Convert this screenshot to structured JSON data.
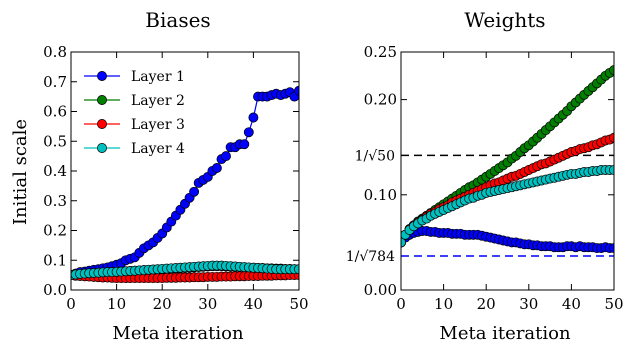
{
  "chart_data": [
    {
      "type": "line",
      "title": "Biases",
      "xlabel": "Meta iteration",
      "ylabel": "Initial scale",
      "xlim": [
        0,
        50
      ],
      "ylim": [
        0,
        0.8
      ],
      "xticks": [
        "0",
        "10",
        "20",
        "30",
        "40",
        "50"
      ],
      "yticks": [
        "0.0",
        "0.1",
        "0.2",
        "0.3",
        "0.4",
        "0.5",
        "0.6",
        "0.7",
        "0.8"
      ],
      "grid": false,
      "legend": "top-left",
      "series": [
        {
          "name": "Layer 1",
          "color": "#0000ff",
          "values": [
            0.05,
            0.055,
            0.06,
            0.062,
            0.065,
            0.068,
            0.07,
            0.073,
            0.076,
            0.08,
            0.085,
            0.09,
            0.1,
            0.105,
            0.11,
            0.125,
            0.14,
            0.15,
            0.16,
            0.175,
            0.19,
            0.21,
            0.23,
            0.25,
            0.27,
            0.29,
            0.31,
            0.33,
            0.36,
            0.37,
            0.38,
            0.4,
            0.41,
            0.44,
            0.45,
            0.48,
            0.48,
            0.49,
            0.49,
            0.53,
            0.58,
            0.65,
            0.65,
            0.65,
            0.655,
            0.66,
            0.655,
            0.66,
            0.665,
            0.65,
            0.67
          ]
        },
        {
          "name": "Layer 2",
          "color": "#007f00",
          "values": [
            0.05,
            0.052,
            0.054,
            0.055,
            0.056,
            0.057,
            0.058,
            0.059,
            0.06,
            0.06,
            0.061,
            0.062,
            0.063,
            0.064,
            0.065,
            0.066,
            0.067,
            0.068,
            0.068,
            0.069,
            0.07,
            0.07,
            0.071,
            0.072,
            0.073,
            0.074,
            0.075,
            0.076,
            0.077,
            0.078,
            0.079,
            0.08,
            0.08,
            0.08,
            0.079,
            0.078,
            0.077,
            0.077,
            0.076,
            0.075,
            0.075,
            0.074,
            0.074,
            0.073,
            0.073,
            0.072,
            0.072,
            0.071,
            0.071,
            0.07,
            0.07
          ]
        },
        {
          "name": "Layer 3",
          "color": "#ff0000",
          "values": [
            0.05,
            0.048,
            0.047,
            0.046,
            0.045,
            0.044,
            0.043,
            0.042,
            0.042,
            0.041,
            0.04,
            0.04,
            0.04,
            0.04,
            0.04,
            0.04,
            0.04,
            0.04,
            0.04,
            0.04,
            0.04,
            0.041,
            0.041,
            0.041,
            0.042,
            0.042,
            0.042,
            0.043,
            0.043,
            0.043,
            0.044,
            0.044,
            0.044,
            0.045,
            0.045,
            0.045,
            0.046,
            0.046,
            0.046,
            0.047,
            0.047,
            0.047,
            0.048,
            0.048,
            0.048,
            0.049,
            0.049,
            0.049,
            0.05,
            0.05,
            0.05
          ]
        },
        {
          "name": "Layer 4",
          "color": "#00bfbf",
          "values": [
            0.05,
            0.052,
            0.054,
            0.055,
            0.056,
            0.057,
            0.058,
            0.059,
            0.06,
            0.06,
            0.061,
            0.062,
            0.063,
            0.064,
            0.065,
            0.066,
            0.067,
            0.068,
            0.069,
            0.07,
            0.071,
            0.072,
            0.073,
            0.074,
            0.075,
            0.076,
            0.077,
            0.078,
            0.079,
            0.08,
            0.081,
            0.082,
            0.082,
            0.082,
            0.081,
            0.08,
            0.079,
            0.078,
            0.077,
            0.076,
            0.075,
            0.074,
            0.073,
            0.072,
            0.071,
            0.07,
            0.07,
            0.07,
            0.07,
            0.07,
            0.07
          ]
        }
      ]
    },
    {
      "type": "line",
      "title": "Weights",
      "xlabel": "Meta iteration",
      "ylabel": "",
      "xlim": [
        0,
        50
      ],
      "ylim": [
        0,
        0.25
      ],
      "xticks": [
        "0",
        "10",
        "20",
        "30",
        "40",
        "50"
      ],
      "yticks": [
        "0.00",
        "0.10",
        "0.20",
        "0.25"
      ],
      "grid": false,
      "reference_lines": [
        {
          "label": "1/√50",
          "value": 0.1414,
          "color": "#000000",
          "style": "dashed"
        },
        {
          "label": "1/√784",
          "value": 0.0357,
          "color": "#0000ff",
          "style": "dashed"
        }
      ],
      "series": [
        {
          "name": "Layer 1",
          "color": "#0000ff",
          "values": [
            0.05,
            0.055,
            0.058,
            0.06,
            0.061,
            0.062,
            0.062,
            0.061,
            0.061,
            0.06,
            0.06,
            0.06,
            0.059,
            0.059,
            0.059,
            0.058,
            0.058,
            0.058,
            0.058,
            0.057,
            0.056,
            0.055,
            0.054,
            0.053,
            0.052,
            0.051,
            0.05,
            0.05,
            0.049,
            0.048,
            0.048,
            0.047,
            0.047,
            0.046,
            0.046,
            0.046,
            0.045,
            0.045,
            0.045,
            0.046,
            0.046,
            0.045,
            0.046,
            0.045,
            0.045,
            0.045,
            0.044,
            0.044,
            0.045,
            0.044,
            0.044
          ]
        },
        {
          "name": "Layer 2",
          "color": "#007f00",
          "values": [
            0.05,
            0.058,
            0.064,
            0.068,
            0.072,
            0.075,
            0.078,
            0.081,
            0.084,
            0.087,
            0.09,
            0.093,
            0.096,
            0.099,
            0.102,
            0.105,
            0.108,
            0.11,
            0.113,
            0.116,
            0.119,
            0.122,
            0.125,
            0.128,
            0.131,
            0.134,
            0.138,
            0.141,
            0.145,
            0.149,
            0.152,
            0.156,
            0.16,
            0.164,
            0.168,
            0.172,
            0.176,
            0.18,
            0.184,
            0.188,
            0.193,
            0.197,
            0.201,
            0.205,
            0.209,
            0.213,
            0.217,
            0.221,
            0.225,
            0.228,
            0.231
          ]
        },
        {
          "name": "Layer 3",
          "color": "#ff0000",
          "values": [
            0.05,
            0.058,
            0.064,
            0.068,
            0.071,
            0.074,
            0.077,
            0.08,
            0.082,
            0.085,
            0.087,
            0.089,
            0.092,
            0.094,
            0.096,
            0.098,
            0.1,
            0.102,
            0.104,
            0.106,
            0.108,
            0.11,
            0.112,
            0.113,
            0.115,
            0.117,
            0.119,
            0.12,
            0.122,
            0.124,
            0.126,
            0.128,
            0.13,
            0.132,
            0.133,
            0.135,
            0.137,
            0.139,
            0.141,
            0.143,
            0.145,
            0.146,
            0.148,
            0.149,
            0.15,
            0.152,
            0.153,
            0.155,
            0.157,
            0.158,
            0.16
          ]
        },
        {
          "name": "Layer 4",
          "color": "#00bfbf",
          "values": [
            0.05,
            0.058,
            0.063,
            0.067,
            0.07,
            0.073,
            0.075,
            0.078,
            0.08,
            0.082,
            0.084,
            0.086,
            0.088,
            0.09,
            0.092,
            0.094,
            0.096,
            0.097,
            0.099,
            0.1,
            0.102,
            0.103,
            0.104,
            0.105,
            0.106,
            0.107,
            0.108,
            0.109,
            0.11,
            0.111,
            0.112,
            0.113,
            0.114,
            0.115,
            0.116,
            0.117,
            0.118,
            0.119,
            0.12,
            0.121,
            0.122,
            0.122,
            0.123,
            0.124,
            0.124,
            0.125,
            0.125,
            0.126,
            0.126,
            0.126,
            0.126
          ]
        }
      ]
    }
  ]
}
